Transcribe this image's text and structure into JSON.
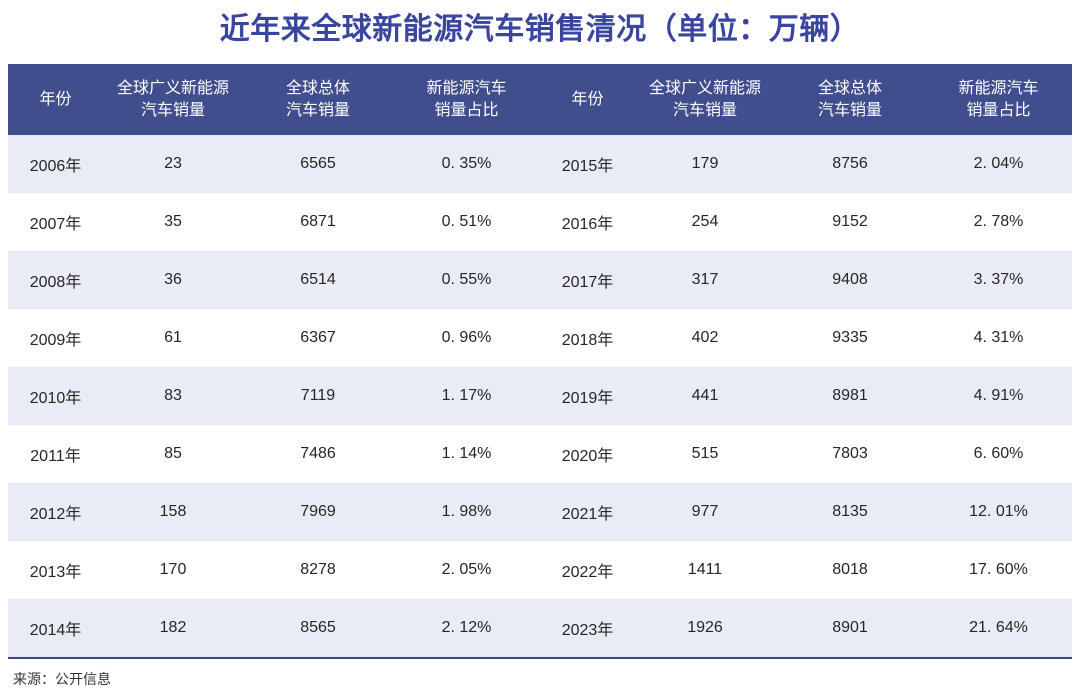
{
  "title": "近年来全球新能源汽车销售清况（单位：万辆）",
  "source_note": "来源：公开信息",
  "colors": {
    "title_text": "#3a45a0",
    "header_bg": "#414e8d",
    "header_text": "#ffffff",
    "row_alt_bg": "#e9ecf6",
    "row_bg": "#ffffff",
    "body_text": "#262626",
    "table_bottom_border": "#3d4a8c"
  },
  "chart_data": {
    "type": "table",
    "title": "近年来全球新能源汽车销售清况（单位：万辆）",
    "unit": "万辆",
    "columns": [
      {
        "label": "年份",
        "lines": [
          "年份"
        ]
      },
      {
        "label": "全球广义新能源汽车销量",
        "lines": [
          "全球广义新能源",
          "汽车销量"
        ]
      },
      {
        "label": "全球总体汽车销量",
        "lines": [
          "全球总体",
          "汽车销量"
        ]
      },
      {
        "label": "新能源汽车销量占比",
        "lines": [
          "新能源汽车",
          "销量占比"
        ]
      }
    ],
    "left_rows": [
      {
        "year": "2006年",
        "nev_sales": "23",
        "total_sales": "6565",
        "share": "0. 35%"
      },
      {
        "year": "2007年",
        "nev_sales": "35",
        "total_sales": "6871",
        "share": "0. 51%"
      },
      {
        "year": "2008年",
        "nev_sales": "36",
        "total_sales": "6514",
        "share": "0. 55%"
      },
      {
        "year": "2009年",
        "nev_sales": "61",
        "total_sales": "6367",
        "share": "0. 96%"
      },
      {
        "year": "2010年",
        "nev_sales": "83",
        "total_sales": "7119",
        "share": "1. 17%"
      },
      {
        "year": "2011年",
        "nev_sales": "85",
        "total_sales": "7486",
        "share": "1. 14%"
      },
      {
        "year": "2012年",
        "nev_sales": "158",
        "total_sales": "7969",
        "share": "1. 98%"
      },
      {
        "year": "2013年",
        "nev_sales": "170",
        "total_sales": "8278",
        "share": "2. 05%"
      },
      {
        "year": "2014年",
        "nev_sales": "182",
        "total_sales": "8565",
        "share": "2. 12%"
      }
    ],
    "right_rows": [
      {
        "year": "2015年",
        "nev_sales": "179",
        "total_sales": "8756",
        "share": "2. 04%"
      },
      {
        "year": "2016年",
        "nev_sales": "254",
        "total_sales": "9152",
        "share": "2. 78%"
      },
      {
        "year": "2017年",
        "nev_sales": "317",
        "total_sales": "9408",
        "share": "3. 37%"
      },
      {
        "year": "2018年",
        "nev_sales": "402",
        "total_sales": "9335",
        "share": "4. 31%"
      },
      {
        "year": "2019年",
        "nev_sales": "441",
        "total_sales": "8981",
        "share": "4. 91%"
      },
      {
        "year": "2020年",
        "nev_sales": "515",
        "total_sales": "7803",
        "share": "6. 60%"
      },
      {
        "year": "2021年",
        "nev_sales": "977",
        "total_sales": "8135",
        "share": "12. 01%"
      },
      {
        "year": "2022年",
        "nev_sales": "1411",
        "total_sales": "8018",
        "share": "17. 60%"
      },
      {
        "year": "2023年",
        "nev_sales": "1926",
        "total_sales": "8901",
        "share": "21. 64%"
      }
    ]
  }
}
